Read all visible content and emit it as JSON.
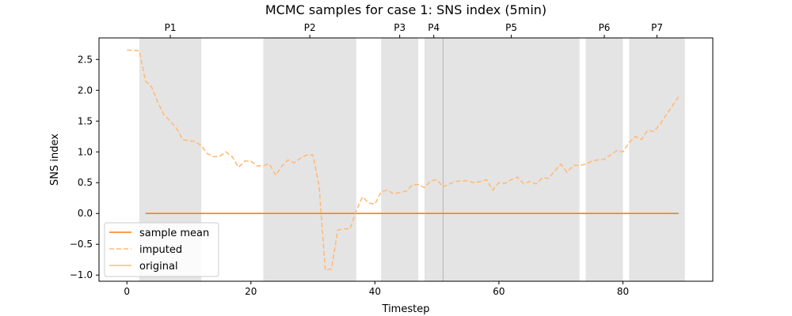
{
  "chart_data": {
    "type": "line",
    "title": "MCMC samples for case 1: SNS index (5min)",
    "xlabel": "Timestep",
    "ylabel": "SNS index",
    "xlim": [
      -4.5,
      94.5
    ],
    "ylim": [
      -1.1,
      2.85
    ],
    "x_ticks": [
      0,
      20,
      40,
      60,
      80
    ],
    "y_ticks": [
      -1.0,
      -0.5,
      0.0,
      0.5,
      1.0,
      1.5,
      2.0,
      2.5
    ],
    "grid": false,
    "legend_position": "lower-left",
    "legend": [
      "sample mean",
      "imputed",
      "original"
    ],
    "periods": [
      {
        "label": "P1",
        "start": 2,
        "end": 12
      },
      {
        "label": "P2",
        "start": 22,
        "end": 37
      },
      {
        "label": "P3",
        "start": 41,
        "end": 47
      },
      {
        "label": "P4",
        "start": 48,
        "end": 51
      },
      {
        "label": "P5",
        "start": 51,
        "end": 73
      },
      {
        "label": "P6",
        "start": 74,
        "end": 80
      },
      {
        "label": "P7",
        "start": 81,
        "end": 90
      }
    ],
    "period_boundary_lines": [
      51
    ],
    "series": [
      {
        "name": "sample mean",
        "style": "solid",
        "color": "#ff7f0e",
        "x": [
          3,
          89
        ],
        "y": [
          0.0,
          0.0
        ]
      },
      {
        "name": "imputed",
        "style": "dashed",
        "color": "#ffbb78",
        "x": [
          0,
          1,
          2,
          3,
          4,
          5,
          6,
          7,
          8,
          9,
          10,
          11,
          12,
          13,
          14,
          15,
          16,
          17,
          18,
          19,
          20,
          21,
          22,
          23,
          24,
          25,
          26,
          27,
          28,
          29,
          30,
          31,
          32,
          33,
          34,
          35,
          36,
          37,
          38,
          39,
          40,
          41,
          42,
          43,
          44,
          45,
          46,
          47,
          48,
          49,
          50,
          51,
          52,
          53,
          54,
          55,
          56,
          57,
          58,
          59,
          60,
          61,
          62,
          63,
          64,
          65,
          66,
          67,
          68,
          69,
          70,
          71,
          72,
          73,
          74,
          75,
          76,
          77,
          78,
          79,
          80,
          81,
          82,
          83,
          84,
          85,
          86,
          87,
          88,
          89
        ],
        "y": [
          2.65,
          2.65,
          2.64,
          2.15,
          2.05,
          1.8,
          1.6,
          1.5,
          1.38,
          1.2,
          1.18,
          1.17,
          1.1,
          0.97,
          0.92,
          0.93,
          1.0,
          0.92,
          0.75,
          0.85,
          0.85,
          0.77,
          0.78,
          0.8,
          0.62,
          0.77,
          0.87,
          0.82,
          0.9,
          0.95,
          0.95,
          0.45,
          -0.92,
          -0.9,
          -0.27,
          -0.25,
          -0.25,
          0.05,
          0.27,
          0.17,
          0.15,
          0.35,
          0.38,
          0.32,
          0.34,
          0.36,
          0.46,
          0.47,
          0.42,
          0.53,
          0.55,
          0.43,
          0.48,
          0.52,
          0.53,
          0.53,
          0.5,
          0.52,
          0.55,
          0.38,
          0.5,
          0.49,
          0.55,
          0.59,
          0.48,
          0.52,
          0.48,
          0.58,
          0.57,
          0.69,
          0.8,
          0.67,
          0.78,
          0.78,
          0.8,
          0.85,
          0.87,
          0.88,
          0.95,
          1.02,
          1.0,
          1.15,
          1.25,
          1.2,
          1.35,
          1.33,
          1.45,
          1.6,
          1.75,
          1.9
        ]
      }
    ]
  }
}
